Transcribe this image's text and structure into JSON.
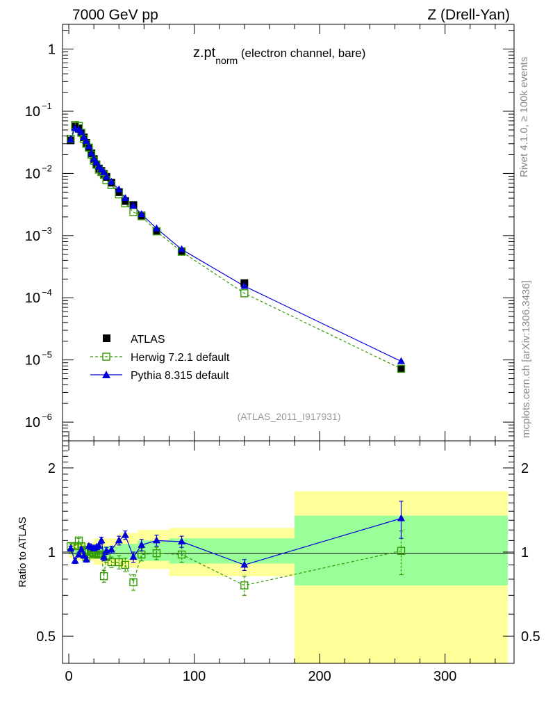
{
  "header": {
    "left": "7000 GeV pp",
    "right": "Z (Drell-Yan)"
  },
  "side_labels": {
    "rivet": "Rivet 4.1.0, ≥ 100k events",
    "mcplots": "mcplots.cern.ch [arXiv:1306.3436]"
  },
  "watermark": "(ATLAS_2011_I917931)",
  "title": {
    "main": "z.pt",
    "sub": "norm",
    "rest": " (electron channel, bare)"
  },
  "legend": {
    "atlas": "ATLAS",
    "herwig": "Herwig 7.2.1 default",
    "pythia": "Pythia 8.315 default"
  },
  "colors": {
    "atlas": "#000000",
    "herwig": "#339900",
    "pythia": "#0000dd",
    "band_outer": "#ffff99",
    "band_inner": "#99ff99"
  },
  "chart_data": [
    {
      "type": "scatter",
      "panel": "main",
      "title": "z.pt_norm (electron channel, bare)",
      "xlabel": "",
      "ylabel": "",
      "yscale": "log",
      "xlim": [
        -5,
        355
      ],
      "ylim": [
        5e-07,
        2.5
      ],
      "y_ticks": [
        {
          "value": 1,
          "base": "1",
          "exp": ""
        },
        {
          "value": 0.1,
          "base": "10",
          "exp": "−1"
        },
        {
          "value": 0.01,
          "base": "10",
          "exp": "−2"
        },
        {
          "value": 0.001,
          "base": "10",
          "exp": "−3"
        },
        {
          "value": 0.0001,
          "base": "10",
          "exp": "−4"
        },
        {
          "value": 1e-05,
          "base": "10",
          "exp": "−5"
        },
        {
          "value": 1e-06,
          "base": "10",
          "exp": "−6"
        }
      ],
      "series": [
        {
          "name": "ATLAS",
          "x": [
            1.5,
            5,
            8,
            10,
            12,
            14,
            16,
            18,
            20,
            22,
            24,
            26,
            28,
            30,
            34,
            40,
            45,
            51.5,
            58,
            70,
            90,
            140,
            265
          ],
          "y": [
            0.034,
            0.057,
            0.053,
            0.045,
            0.038,
            0.031,
            0.026,
            0.021,
            0.017,
            0.014,
            0.012,
            0.011,
            0.0098,
            0.0088,
            0.0071,
            0.005,
            0.0036,
            0.0031,
            0.0021,
            0.00118,
            0.00056,
            0.000172,
            7.2e-06
          ]
        },
        {
          "name": "Herwig 7.2.1 default",
          "x": [
            1.5,
            5,
            8,
            10,
            12,
            14,
            16,
            18,
            20,
            22,
            24,
            26,
            28,
            30,
            34,
            40,
            45,
            51.5,
            58,
            70,
            90,
            140,
            265
          ],
          "y": [
            0.036,
            0.06,
            0.058,
            0.045,
            0.036,
            0.03,
            0.026,
            0.02,
            0.016,
            0.0138,
            0.0115,
            0.0105,
            0.0095,
            0.0078,
            0.0065,
            0.0046,
            0.0033,
            0.0024,
            0.00205,
            0.00117,
            0.00055,
            0.000118,
            7.2e-06
          ]
        },
        {
          "name": "Pythia 8.315 default",
          "x": [
            1.5,
            5,
            8,
            10,
            12,
            14,
            16,
            18,
            20,
            22,
            24,
            26,
            28,
            30,
            34,
            40,
            45,
            51.5,
            58,
            70,
            90,
            140,
            265
          ],
          "y": [
            0.035,
            0.053,
            0.05,
            0.046,
            0.038,
            0.033,
            0.027,
            0.021,
            0.017,
            0.015,
            0.0128,
            0.0115,
            0.0104,
            0.0088,
            0.0073,
            0.0055,
            0.004,
            0.003,
            0.0022,
            0.0013,
            0.0006,
            0.000154,
            9.5e-06
          ]
        }
      ]
    },
    {
      "type": "line",
      "panel": "ratio",
      "xlabel": "",
      "ylabel": "Ratio to ATLAS",
      "yscale": "log",
      "xlim": [
        -5,
        355
      ],
      "ylim": [
        0.4,
        2.5
      ],
      "y_ticks": [
        0.5,
        1,
        2
      ],
      "x_ticks": [
        0,
        100,
        200,
        300
      ],
      "reference_line": 1,
      "uncertainty_bands": [
        {
          "x0": 0,
          "x1": 3,
          "outer": [
            0.95,
            1.05
          ],
          "inner": [
            0.98,
            1.02
          ]
        },
        {
          "x0": 3,
          "x1": 20,
          "outer": [
            0.93,
            1.08
          ],
          "inner": [
            0.97,
            1.03
          ]
        },
        {
          "x0": 20,
          "x1": 40,
          "outer": [
            0.9,
            1.12
          ],
          "inner": [
            0.95,
            1.05
          ]
        },
        {
          "x0": 40,
          "x1": 55,
          "outer": [
            0.88,
            1.17
          ],
          "inner": [
            0.94,
            1.07
          ]
        },
        {
          "x0": 55,
          "x1": 80,
          "outer": [
            0.87,
            1.2
          ],
          "inner": [
            0.93,
            1.1
          ]
        },
        {
          "x0": 80,
          "x1": 180,
          "outer": [
            0.82,
            1.22
          ],
          "inner": [
            0.91,
            1.12
          ]
        },
        {
          "x0": 180,
          "x1": 350,
          "outer": [
            0.4,
            1.65
          ],
          "inner": [
            0.76,
            1.35
          ]
        }
      ],
      "series": [
        {
          "name": "Herwig 7.2.1 default",
          "x": [
            1.5,
            5,
            8,
            10,
            12,
            14,
            16,
            18,
            20,
            22,
            24,
            26,
            28,
            30,
            34,
            40,
            45,
            51.5,
            58,
            70,
            90,
            140,
            265
          ],
          "y": [
            1.05,
            1.05,
            1.1,
            1.05,
            1.02,
            0.96,
            1.0,
            0.98,
            0.99,
            0.98,
            0.98,
            0.98,
            0.82,
            0.96,
            0.92,
            0.92,
            0.9,
            0.78,
            0.98,
            0.99,
            0.98,
            0.76,
            1.01
          ],
          "err": [
            0.02,
            0.02,
            0.02,
            0.02,
            0.02,
            0.02,
            0.02,
            0.02,
            0.02,
            0.02,
            0.02,
            0.02,
            0.04,
            0.04,
            0.04,
            0.05,
            0.05,
            0.05,
            0.05,
            0.05,
            0.06,
            0.06,
            0.18
          ]
        },
        {
          "name": "Pythia 8.315 default",
          "x": [
            1.5,
            5,
            8,
            10,
            12,
            14,
            16,
            18,
            20,
            22,
            24,
            26,
            28,
            30,
            34,
            40,
            45,
            51.5,
            58,
            70,
            90,
            140,
            265
          ],
          "y": [
            1.03,
            0.93,
            0.98,
            1.02,
            0.97,
            0.94,
            1.05,
            1.04,
            1.03,
            1.04,
            1.05,
            1.1,
            0.96,
            1.01,
            1.02,
            1.1,
            1.15,
            0.96,
            1.06,
            1.1,
            1.09,
            0.9,
            1.32
          ],
          "err": [
            0.02,
            0.02,
            0.02,
            0.02,
            0.02,
            0.02,
            0.02,
            0.02,
            0.02,
            0.02,
            0.02,
            0.03,
            0.03,
            0.03,
            0.03,
            0.04,
            0.04,
            0.04,
            0.05,
            0.05,
            0.05,
            0.04,
            0.2
          ]
        }
      ]
    }
  ]
}
